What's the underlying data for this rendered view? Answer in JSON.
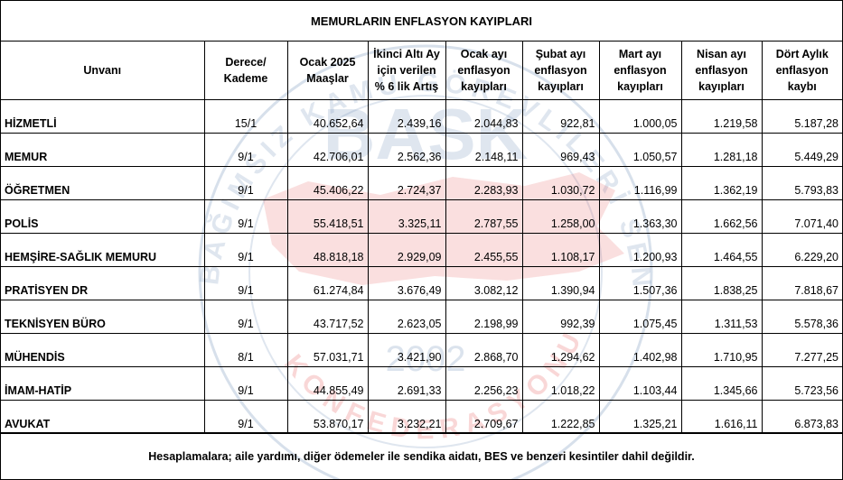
{
  "title": "MEMURLARIN ENFLASYON KAYIPLARI",
  "watermark": {
    "logo_text": "BASK",
    "year": "2002",
    "colors": {
      "blue": "#6f8fb8",
      "red": "#e24b4b"
    }
  },
  "headers": {
    "unvan": "Unvanı",
    "derece_1": "Derece/",
    "derece_2": "Kademe",
    "maas_1": "Ocak 2025",
    "maas_2": "Maaşlar",
    "artis_1": "İkinci Altı Ay",
    "artis_2": "için verilen",
    "artis_3": "% 6 lik Artış",
    "ocak_1": "Ocak ayı",
    "ocak_2": "enflasyon",
    "ocak_3": "kayıpları",
    "subat_1": "Şubat ayı",
    "subat_2": "enflasyon",
    "subat_3": "kayıpları",
    "mart_1": "Mart ayı",
    "mart_2": "enflasyon",
    "mart_3": "kayıpları",
    "nisan_1": "Nisan ayı",
    "nisan_2": "enflasyon",
    "nisan_3": "kayıpları",
    "dort_1": "Dört Aylık",
    "dort_2": "enflasyon",
    "dort_3": "kaybı"
  },
  "rows": [
    {
      "unvan": "HİZMETLİ",
      "derece": "15/1",
      "maas": "40.652,64",
      "artis": "2.439,16",
      "ocak": "2.044,83",
      "subat": "922,81",
      "mart": "1.000,05",
      "nisan": "1.219,58",
      "toplam": "5.187,28"
    },
    {
      "unvan": "MEMUR",
      "derece": "9/1",
      "maas": "42.706,01",
      "artis": "2.562,36",
      "ocak": "2.148,11",
      "subat": "969,43",
      "mart": "1.050,57",
      "nisan": "1.281,18",
      "toplam": "5.449,29"
    },
    {
      "unvan": "ÖĞRETMEN",
      "derece": "9/1",
      "maas": "45.406,22",
      "artis": "2.724,37",
      "ocak": "2.283,93",
      "subat": "1.030,72",
      "mart": "1.116,99",
      "nisan": "1.362,19",
      "toplam": "5.793,83"
    },
    {
      "unvan": "POLİS",
      "derece": "9/1",
      "maas": "55.418,51",
      "artis": "3.325,11",
      "ocak": "2.787,55",
      "subat": "1.258,00",
      "mart": "1.363,30",
      "nisan": "1.662,56",
      "toplam": "7.071,40"
    },
    {
      "unvan": "HEMŞİRE-SAĞLIK MEMURU",
      "derece": "9/1",
      "maas": "48.818,18",
      "artis": "2.929,09",
      "ocak": "2.455,55",
      "subat": "1.108,17",
      "mart": "1.200,93",
      "nisan": "1.464,55",
      "toplam": "6.229,20"
    },
    {
      "unvan": "PRATİSYEN DR",
      "derece": "9/1",
      "maas": "61.274,84",
      "artis": "3.676,49",
      "ocak": "3.082,12",
      "subat": "1.390,94",
      "mart": "1.507,36",
      "nisan": "1.838,25",
      "toplam": "7.818,67"
    },
    {
      "unvan": "TEKNİSYEN BÜRO",
      "derece": "9/1",
      "maas": "43.717,52",
      "artis": "2.623,05",
      "ocak": "2.198,99",
      "subat": "992,39",
      "mart": "1.075,45",
      "nisan": "1.311,53",
      "toplam": "5.578,36"
    },
    {
      "unvan": "MÜHENDİS",
      "derece": "8/1",
      "maas": "57.031,71",
      "artis": "3.421,90",
      "ocak": "2.868,70",
      "subat": "1.294,62",
      "mart": "1.402,98",
      "nisan": "1.710,95",
      "toplam": "7.277,25"
    },
    {
      "unvan": "İMAM-HATİP",
      "derece": "9/1",
      "maas": "44.855,49",
      "artis": "2.691,33",
      "ocak": "2.256,23",
      "subat": "1.018,22",
      "mart": "1.103,44",
      "nisan": "1.345,66",
      "toplam": "5.723,56"
    },
    {
      "unvan": "AVUKAT",
      "derece": "9/1",
      "maas": "53.870,17",
      "artis": "3.232,21",
      "ocak": "2.709,67",
      "subat": "1.222,85",
      "mart": "1.325,21",
      "nisan": "1.616,11",
      "toplam": "6.873,83"
    }
  ],
  "footnote": "Hesaplamalara; aile yardımı, diğer ödemeler ile sendika aidatı, BES ve benzeri kesintiler dahil değildir."
}
